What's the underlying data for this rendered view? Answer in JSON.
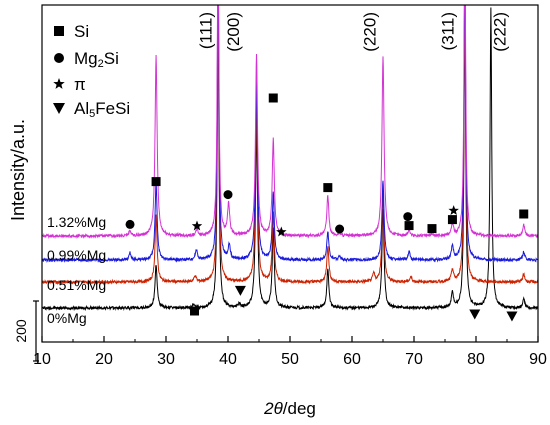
{
  "chart_data": {
    "type": "line",
    "title": "",
    "xlabel": "2θ/deg",
    "xlabel_italic": "2θ",
    "xlabel_unit": "/deg",
    "ylabel": "Intensity/a.u.",
    "xlim": [
      10,
      90
    ],
    "x_ticks": [
      10,
      20,
      30,
      40,
      50,
      60,
      70,
      80,
      90
    ],
    "scale_bar": {
      "label": "200",
      "value": 200
    },
    "legend_placement": "top-left",
    "legend": [
      {
        "marker": "square",
        "label": "Si"
      },
      {
        "marker": "circle",
        "label": "Mg2Si",
        "label_main": "Mg",
        "label_sub": "2",
        "label_tail": "Si"
      },
      {
        "marker": "star",
        "label": "π"
      },
      {
        "marker": "down-triangle",
        "label": "Al5FeSi",
        "label_main": "Al",
        "label_sub": "5",
        "label_tail": "FeSi"
      }
    ],
    "plane_labels": [
      {
        "x": 36.4,
        "text": "(111)"
      },
      {
        "x": 40.8,
        "text": "(200)"
      },
      {
        "x": 62.8,
        "text": "(220)"
      },
      {
        "x": 75.4,
        "text": "(311)"
      },
      {
        "x": 83.8,
        "text": "(222)"
      }
    ],
    "series": [
      {
        "name": "0%Mg",
        "color": "#000000",
        "baseline": 0,
        "peaks": [
          [
            28.4,
            220
          ],
          [
            34.4,
            14
          ],
          [
            38.4,
            1500
          ],
          [
            41.8,
            18
          ],
          [
            44.6,
            900
          ],
          [
            47.3,
            390
          ],
          [
            56.1,
            190
          ],
          [
            65.0,
            500
          ],
          [
            76.2,
            75
          ],
          [
            78.2,
            1500
          ],
          [
            82.4,
            1500
          ],
          [
            87.7,
            42
          ]
        ]
      },
      {
        "name": "0.51%Mg",
        "color": "#cc2200",
        "baseline": 130,
        "peaks": [
          [
            28.4,
            330
          ],
          [
            34.7,
            30
          ],
          [
            38.4,
            1500
          ],
          [
            44.6,
            900
          ],
          [
            47.3,
            340
          ],
          [
            56.1,
            180
          ],
          [
            63.5,
            40
          ],
          [
            65.0,
            450
          ],
          [
            69.5,
            25
          ],
          [
            76.2,
            60
          ],
          [
            78.2,
            1500
          ],
          [
            87.7,
            38
          ]
        ]
      },
      {
        "name": "0.99%Mg",
        "color": "#1a1adc",
        "baseline": 240,
        "peaks": [
          [
            24.2,
            35
          ],
          [
            28.4,
            380
          ],
          [
            34.9,
            50
          ],
          [
            38.4,
            1500
          ],
          [
            40.2,
            70
          ],
          [
            44.6,
            900
          ],
          [
            47.3,
            330
          ],
          [
            56.1,
            140
          ],
          [
            58.0,
            20
          ],
          [
            65.0,
            400
          ],
          [
            69.2,
            40
          ],
          [
            76.2,
            70
          ],
          [
            78.2,
            1500
          ],
          [
            87.7,
            40
          ]
        ]
      },
      {
        "name": "1.32%Mg",
        "color": "#d433d4",
        "baseline": 360,
        "peaks": [
          [
            24.2,
            25
          ],
          [
            28.4,
            900
          ],
          [
            35.0,
            30
          ],
          [
            38.4,
            1500
          ],
          [
            40.1,
            160
          ],
          [
            44.6,
            900
          ],
          [
            47.3,
            480
          ],
          [
            56.1,
            200
          ],
          [
            58.0,
            15
          ],
          [
            65.0,
            900
          ],
          [
            69.2,
            30
          ],
          [
            72.9,
            10
          ],
          [
            76.2,
            60
          ],
          [
            78.2,
            1500
          ],
          [
            87.7,
            55
          ]
        ]
      }
    ],
    "markers": [
      {
        "symbol": "square",
        "x": 28.4,
        "y": 632
      },
      {
        "symbol": "square",
        "x": 47.3,
        "y": 1050
      },
      {
        "symbol": "square",
        "x": 56.1,
        "y": 602
      },
      {
        "symbol": "square",
        "x": 69.2,
        "y": 412
      },
      {
        "symbol": "square",
        "x": 72.9,
        "y": 397
      },
      {
        "symbol": "square",
        "x": 76.2,
        "y": 442
      },
      {
        "symbol": "square",
        "x": 87.7,
        "y": 470
      },
      {
        "symbol": "square",
        "x": 34.6,
        "y": -15
      },
      {
        "symbol": "circle",
        "x": 24.2,
        "y": 418
      },
      {
        "symbol": "circle",
        "x": 40.0,
        "y": 567
      },
      {
        "symbol": "circle",
        "x": 58.0,
        "y": 395
      },
      {
        "symbol": "circle",
        "x": 69.0,
        "y": 457
      },
      {
        "symbol": "star",
        "x": 35.0,
        "y": 410
      },
      {
        "symbol": "star",
        "x": 48.6,
        "y": 380
      },
      {
        "symbol": "star",
        "x": 76.4,
        "y": 487
      },
      {
        "symbol": "down-triangle",
        "x": 42.0,
        "y": 88
      },
      {
        "symbol": "down-triangle",
        "x": 79.8,
        "y": -30
      },
      {
        "symbol": "down-triangle",
        "x": 85.8,
        "y": -40
      }
    ]
  }
}
